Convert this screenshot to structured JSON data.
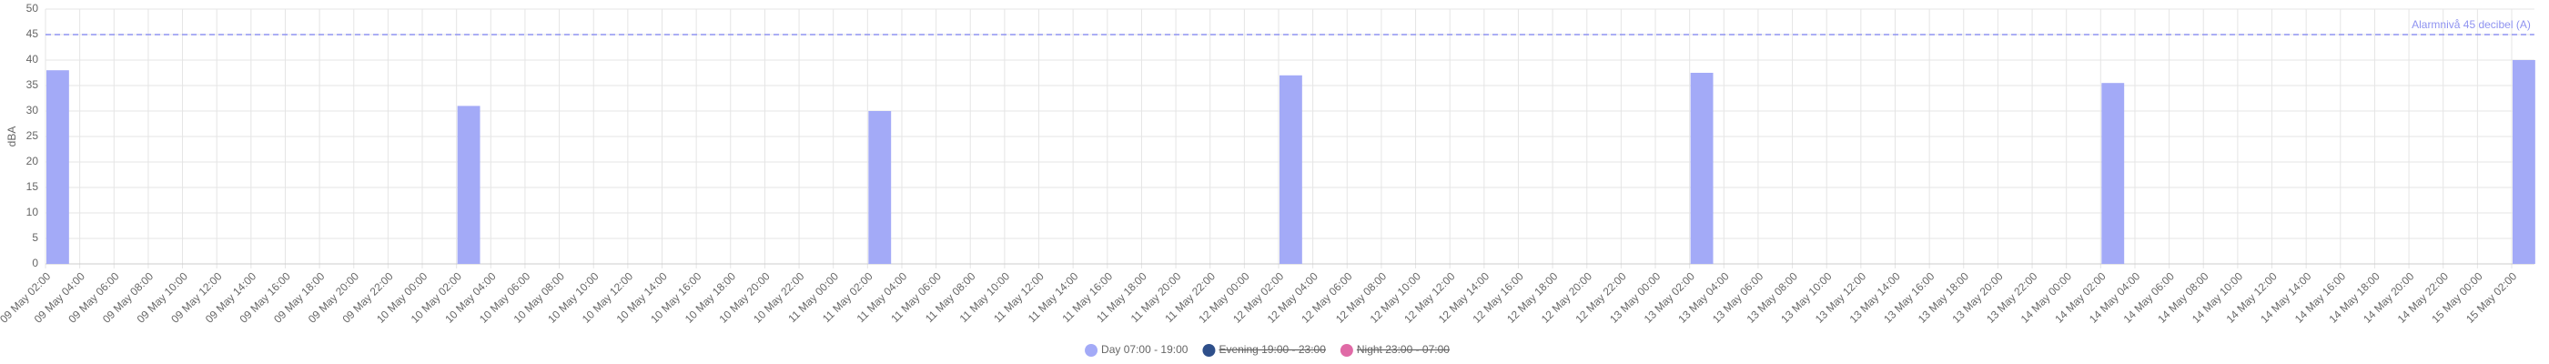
{
  "chart_data": {
    "type": "bar",
    "y_label": "dBA",
    "categories": [
      "09 May 02:00",
      "09 May 04:00",
      "09 May 06:00",
      "09 May 08:00",
      "09 May 10:00",
      "09 May 12:00",
      "09 May 14:00",
      "09 May 16:00",
      "09 May 18:00",
      "09 May 20:00",
      "09 May 22:00",
      "10 May 00:00",
      "10 May 02:00",
      "10 May 04:00",
      "10 May 06:00",
      "10 May 08:00",
      "10 May 10:00",
      "10 May 12:00",
      "10 May 14:00",
      "10 May 16:00",
      "10 May 18:00",
      "10 May 20:00",
      "10 May 22:00",
      "11 May 00:00",
      "11 May 02:00",
      "11 May 04:00",
      "11 May 06:00",
      "11 May 08:00",
      "11 May 10:00",
      "11 May 12:00",
      "11 May 14:00",
      "11 May 16:00",
      "11 May 18:00",
      "11 May 20:00",
      "11 May 22:00",
      "12 May 00:00",
      "12 May 02:00",
      "12 May 04:00",
      "12 May 06:00",
      "12 May 08:00",
      "12 May 10:00",
      "12 May 12:00",
      "12 May 14:00",
      "12 May 16:00",
      "12 May 18:00",
      "12 May 20:00",
      "12 May 22:00",
      "13 May 00:00",
      "13 May 02:00",
      "13 May 04:00",
      "13 May 06:00",
      "13 May 08:00",
      "13 May 10:00",
      "13 May 12:00",
      "13 May 14:00",
      "13 May 16:00",
      "13 May 18:00",
      "13 May 20:00",
      "13 May 22:00",
      "14 May 00:00",
      "14 May 02:00",
      "14 May 04:00",
      "14 May 06:00",
      "14 May 08:00",
      "14 May 10:00",
      "14 May 12:00",
      "14 May 14:00",
      "14 May 16:00",
      "14 May 18:00",
      "14 May 20:00",
      "14 May 22:00",
      "15 May 00:00",
      "15 May 02:00"
    ],
    "series": [
      {
        "name": "Day 07:00 - 19:00",
        "color": "#a3aaf7",
        "hidden": false,
        "values": [
          38,
          null,
          null,
          null,
          null,
          null,
          null,
          null,
          null,
          null,
          null,
          null,
          31,
          null,
          null,
          null,
          null,
          null,
          null,
          null,
          null,
          null,
          null,
          null,
          30,
          null,
          null,
          null,
          null,
          null,
          null,
          null,
          null,
          null,
          null,
          null,
          37,
          null,
          null,
          null,
          null,
          null,
          null,
          null,
          null,
          null,
          null,
          null,
          37.5,
          null,
          null,
          null,
          null,
          null,
          null,
          null,
          null,
          null,
          null,
          null,
          35.5,
          null,
          null,
          null,
          null,
          null,
          null,
          null,
          null,
          null,
          null,
          null,
          40
        ]
      },
      {
        "name": "Evening 19:00 - 23:00",
        "color": "#2e4f8a",
        "hidden": true,
        "values": [
          null,
          null,
          null,
          null,
          null,
          null,
          null,
          null,
          null,
          null,
          null,
          null,
          null,
          null,
          null,
          null,
          null,
          null,
          null,
          null,
          null,
          null,
          null,
          null,
          null,
          null,
          null,
          null,
          null,
          null,
          null,
          null,
          null,
          null,
          null,
          null,
          null,
          null,
          null,
          null,
          null,
          null,
          null,
          null,
          null,
          null,
          null,
          null,
          null,
          null,
          null,
          null,
          null,
          null,
          null,
          null,
          null,
          null,
          null,
          null,
          null,
          null,
          null,
          null,
          null,
          null,
          null,
          null,
          null,
          null,
          null,
          null,
          null
        ]
      },
      {
        "name": "Night 23:00 - 07:00",
        "color": "#e06aa6",
        "hidden": true,
        "values": [
          null,
          null,
          null,
          null,
          null,
          null,
          null,
          null,
          null,
          null,
          null,
          null,
          null,
          null,
          null,
          null,
          null,
          null,
          null,
          null,
          null,
          null,
          null,
          null,
          null,
          null,
          null,
          null,
          null,
          null,
          null,
          null,
          null,
          null,
          null,
          null,
          null,
          null,
          null,
          null,
          null,
          null,
          null,
          null,
          null,
          null,
          null,
          null,
          null,
          null,
          null,
          null,
          null,
          null,
          null,
          null,
          null,
          null,
          null,
          null,
          null,
          null,
          null,
          null,
          null,
          null,
          null,
          null,
          null,
          null,
          null,
          null,
          null
        ]
      }
    ],
    "ylim": [
      0,
      50
    ],
    "yticks": [
      0,
      5,
      10,
      15,
      20,
      25,
      30,
      35,
      40,
      45,
      50
    ],
    "grid": true,
    "annotations": [
      {
        "text": "Alarmnivå 45 decibel (A)",
        "y": 45,
        "color": "#8f93f0"
      }
    ],
    "legend": "bottom"
  }
}
